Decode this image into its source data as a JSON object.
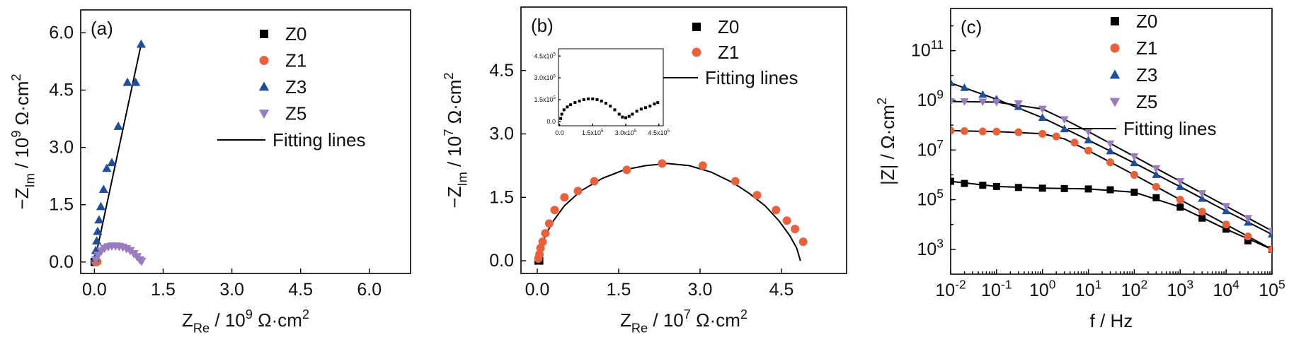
{
  "chart_data": [
    {
      "panel": "(a)",
      "type": "scatter",
      "xlabel": "Z_Re / 10^9 Ω·cm^2",
      "ylabel": "−Z_Im / 10^9 Ω·cm^2",
      "xlim": [
        -0.3,
        6.9
      ],
      "ylim": [
        -0.3,
        6.6
      ],
      "xticks": [
        "0.0",
        "1.5",
        "3.0",
        "4.5",
        "6.0"
      ],
      "yticks": [
        "0.0",
        "1.5",
        "3.0",
        "4.5",
        "6.0"
      ],
      "legend": [
        "Z0",
        "Z1",
        "Z3",
        "Z5",
        "Fitting lines"
      ],
      "legend_position": "top-right",
      "series": [
        {
          "name": "Z0",
          "marker": "square",
          "color": "#000000",
          "x": [
            0.0005,
            0.001,
            0.0015
          ],
          "y": [
            0.0002,
            0.0005,
            0.0003
          ]
        },
        {
          "name": "Z1",
          "marker": "circle",
          "color": "#e8603c",
          "x": [
            0.02,
            0.04,
            0.06
          ],
          "y": [
            0.01,
            0.02,
            0.01
          ]
        },
        {
          "name": "Z3",
          "marker": "triangle",
          "color": "#1f4e9a",
          "x": [
            0.01,
            0.03,
            0.05,
            0.07,
            0.1,
            0.14,
            0.2,
            0.27,
            0.38,
            0.52,
            0.72,
            0.9,
            1.02
          ],
          "y": [
            0.1,
            0.3,
            0.55,
            0.8,
            1.1,
            1.45,
            1.9,
            2.45,
            2.6,
            3.55,
            4.7,
            4.7,
            5.7
          ]
        },
        {
          "name": "Z5",
          "marker": "triangle-down",
          "color": "#9b7bc0",
          "x": [
            0.03,
            0.08,
            0.15,
            0.22,
            0.3,
            0.38,
            0.46,
            0.54,
            0.62,
            0.7,
            0.78,
            0.86,
            0.93,
            0.99,
            1.03
          ],
          "y": [
            0.06,
            0.18,
            0.29,
            0.36,
            0.4,
            0.42,
            0.42,
            0.41,
            0.39,
            0.35,
            0.3,
            0.22,
            0.14,
            0.06,
            0.02
          ]
        }
      ],
      "fits": [
        {
          "x": [
            0.0,
            1.02
          ],
          "y": [
            0.0,
            5.7
          ]
        },
        {
          "x": [
            0.0,
            0.05,
            0.12,
            0.2,
            0.3,
            0.4,
            0.5,
            0.6,
            0.7,
            0.8,
            0.88,
            0.95,
            1.0,
            1.03
          ],
          "y": [
            0.0,
            0.12,
            0.25,
            0.34,
            0.4,
            0.42,
            0.42,
            0.4,
            0.35,
            0.28,
            0.2,
            0.12,
            0.05,
            0.0
          ]
        }
      ]
    },
    {
      "panel": "(b)",
      "type": "scatter",
      "xlabel": "Z_Re / 10^7 Ω·cm^2",
      "ylabel": "−Z_Im / 10^7 Ω·cm^2",
      "xlim": [
        -0.3,
        5.7
      ],
      "ylim": [
        -0.3,
        6.0
      ],
      "xticks": [
        "0.0",
        "1.5",
        "3.0",
        "4.5"
      ],
      "yticks": [
        "0.0",
        "1.5",
        "3.0",
        "4.5"
      ],
      "legend": [
        "Z0",
        "Z1",
        "Fitting lines"
      ],
      "legend_position": "top-right",
      "series": [
        {
          "name": "Z0",
          "marker": "square",
          "color": "#000000",
          "x": [
            0.02,
            0.03,
            0.04
          ],
          "y": [
            0.0,
            0.01,
            0.0
          ]
        },
        {
          "name": "Z1",
          "marker": "circle",
          "color": "#e8603c",
          "x": [
            0.02,
            0.04,
            0.06,
            0.1,
            0.15,
            0.22,
            0.32,
            0.5,
            0.75,
            1.05,
            1.65,
            2.3,
            3.05,
            3.65,
            4.05,
            4.4,
            4.6,
            4.75,
            4.9
          ],
          "y": [
            0.05,
            0.15,
            0.3,
            0.45,
            0.65,
            0.88,
            1.2,
            1.5,
            1.65,
            1.88,
            2.15,
            2.3,
            2.25,
            1.88,
            1.55,
            1.2,
            0.95,
            0.75,
            0.45
          ]
        }
      ],
      "fits": [
        {
          "x": [
            0.0,
            0.05,
            0.15,
            0.3,
            0.5,
            0.8,
            1.2,
            1.6,
            2.0,
            2.4,
            2.8,
            3.2,
            3.6,
            3.9,
            4.2,
            4.45,
            4.65,
            4.78,
            4.85
          ],
          "y": [
            0.0,
            0.3,
            0.6,
            0.95,
            1.3,
            1.65,
            1.95,
            2.15,
            2.25,
            2.3,
            2.25,
            2.1,
            1.85,
            1.6,
            1.3,
            0.95,
            0.6,
            0.3,
            0.0
          ]
        }
      ],
      "inset": {
        "xlim": [
          -0.05,
          4.7
        ],
        "ylim": [
          -0.3,
          5.0
        ],
        "xticks": [
          "0.0",
          "1.5x10^5",
          "3.0x10^5",
          "4.5x10^5"
        ],
        "yticks": [
          "0.0",
          "1.5x10^5",
          "3.0x10^5",
          "4.5x10^5"
        ],
        "series": {
          "name": "Z0",
          "marker": "square",
          "color": "#000000",
          "x": [
            0.05,
            0.1,
            0.2,
            0.35,
            0.5,
            0.7,
            0.9,
            1.1,
            1.3,
            1.5,
            1.7,
            1.9,
            2.1,
            2.3,
            2.5,
            2.7,
            2.85,
            3.0,
            3.15,
            3.3,
            3.5,
            3.7,
            3.9,
            4.1,
            4.3,
            4.45
          ],
          "y": [
            0.2,
            0.5,
            0.8,
            1.0,
            1.15,
            1.3,
            1.4,
            1.5,
            1.55,
            1.55,
            1.5,
            1.4,
            1.25,
            1.05,
            0.8,
            0.5,
            0.3,
            0.25,
            0.35,
            0.5,
            0.7,
            0.85,
            0.95,
            1.05,
            1.2,
            1.3
          ]
        }
      }
    },
    {
      "panel": "(c)",
      "type": "scatter",
      "xscale": "log",
      "yscale": "log",
      "xlabel": "f / Hz",
      "ylabel": "|Z| / Ω·cm^2",
      "xlim": [
        0.01,
        100000
      ],
      "ylim": [
        100,
        5000000000000.0
      ],
      "xticks": [
        "10^-2",
        "10^-1",
        "10^0",
        "10^1",
        "10^2",
        "10^3",
        "10^4",
        "10^5"
      ],
      "yticks": [
        "10^3",
        "10^5",
        "10^7",
        "10^9",
        "10^11"
      ],
      "legend": [
        "Z0",
        "Z1",
        "Z3",
        "Z5",
        "Fitting lines"
      ],
      "legend_position": "top-right",
      "series": [
        {
          "name": "Z0",
          "marker": "square",
          "color": "#000000",
          "x": [
            0.01,
            0.02,
            0.05,
            0.1,
            0.3,
            1,
            3,
            10,
            30,
            100,
            300,
            1000,
            3000,
            10000,
            30000,
            100000
          ],
          "y": [
            550000,
            450000,
            380000,
            340000,
            310000,
            290000,
            280000,
            270000,
            250000,
            200000,
            120000,
            50000,
            18000,
            6500,
            2200,
            1000
          ]
        },
        {
          "name": "Z1",
          "marker": "circle",
          "color": "#e8603c",
          "x": [
            0.01,
            0.02,
            0.05,
            0.1,
            0.3,
            1,
            2,
            5,
            10,
            30,
            100,
            300,
            1000,
            3000,
            10000,
            30000,
            100000
          ],
          "y": [
            60000000,
            58000000,
            56000000,
            55000000,
            52000000,
            45000000,
            35000000,
            20000000,
            9500000,
            3200000,
            1000000,
            330000,
            100000,
            33000,
            10000,
            3300,
            1000
          ]
        },
        {
          "name": "Z3",
          "marker": "triangle",
          "color": "#1f4e9a",
          "x": [
            0.01,
            0.02,
            0.05,
            0.1,
            0.3,
            1,
            3,
            10,
            30,
            100,
            300,
            1000,
            3000,
            10000,
            30000,
            100000
          ],
          "y": [
            5000000000,
            3200000000,
            1700000000,
            1100000000,
            550000000,
            200000000,
            70000000,
            25000000,
            9000000,
            3000000,
            1000000,
            330000,
            110000,
            35000,
            12000,
            4000
          ]
        },
        {
          "name": "Z5",
          "marker": "triangle-down",
          "color": "#9b7bc0",
          "x": [
            0.01,
            0.02,
            0.05,
            0.1,
            0.3,
            1,
            3,
            10,
            30,
            100,
            300,
            1000,
            3000,
            10000,
            30000,
            100000
          ],
          "y": [
            900000000,
            900000000,
            880000000,
            850000000,
            750000000,
            450000000,
            170000000,
            55000000,
            18000000,
            5500000,
            1800000,
            550000,
            180000,
            55000,
            18000,
            5500
          ]
        }
      ],
      "fits": [
        {
          "x": [
            0.01,
            0.1,
            1,
            10,
            100,
            1000,
            10000,
            100000
          ],
          "y": [
            550000,
            340000,
            290000,
            270000,
            200000,
            50000,
            6500,
            1000
          ]
        },
        {
          "x": [
            0.01,
            0.1,
            1,
            3,
            10,
            100,
            1000,
            10000,
            100000
          ],
          "y": [
            60000000,
            55000000,
            45000000,
            28000000,
            9500000,
            1000000,
            100000,
            10000,
            1000
          ]
        },
        {
          "x": [
            0.01,
            0.1,
            1,
            10,
            100,
            1000,
            10000,
            100000
          ],
          "y": [
            5000000000,
            1100000000,
            200000000,
            25000000,
            3000000,
            330000,
            35000,
            4000
          ]
        },
        {
          "x": [
            0.01,
            0.1,
            1,
            3,
            10,
            100,
            1000,
            10000,
            100000
          ],
          "y": [
            900000000,
            850000000,
            450000000,
            170000000,
            55000000,
            5500000,
            550000,
            55000,
            5500
          ]
        }
      ]
    }
  ]
}
